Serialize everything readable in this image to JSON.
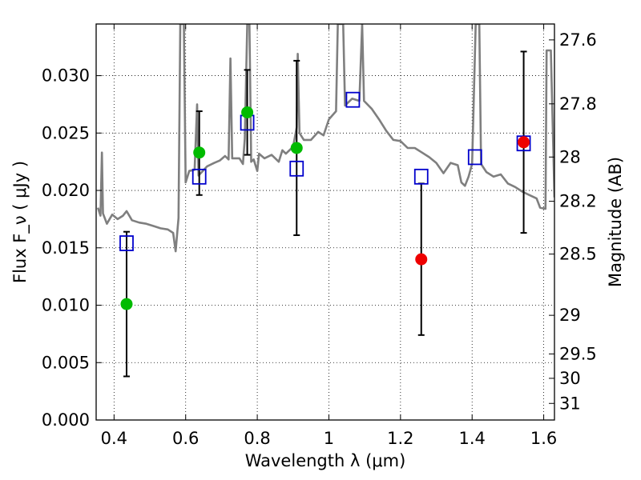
{
  "chart_data": {
    "type": "scatter",
    "title": "",
    "xlabel": "Wavelength  λ (μm)",
    "ylabel": "Flux  F_ν  ( μJy )",
    "y2label": "Magnitude (AB)",
    "xlim": [
      0.35,
      1.63
    ],
    "ylim": [
      0.0,
      0.0345
    ],
    "grid": true,
    "x_ticks": [
      0.4,
      0.6,
      0.8,
      1.0,
      1.2,
      1.4,
      1.6
    ],
    "x_tick_labels": [
      "0.4",
      "0.6",
      "0.8",
      "1",
      "1.2",
      "1.4",
      "1.6"
    ],
    "y_ticks": [
      0.0,
      0.005,
      0.01,
      0.015,
      0.02,
      0.025,
      0.03
    ],
    "y_tick_labels": [
      "0.000",
      "0.005",
      "0.010",
      "0.015",
      "0.020",
      "0.025",
      "0.030"
    ],
    "y2_ticks": [
      {
        "label": "27.6",
        "mag": 27.6
      },
      {
        "label": "27.8",
        "mag": 27.8
      },
      {
        "label": "28",
        "mag": 28.0
      },
      {
        "label": "28.2",
        "mag": 28.2
      },
      {
        "label": "28.5",
        "mag": 28.5
      },
      {
        "label": "29",
        "mag": 29.0
      },
      {
        "label": "29.5",
        "mag": 29.5
      },
      {
        "label": "30",
        "mag": 30.0
      },
      {
        "label": "31",
        "mag": 31.0
      }
    ],
    "model_spectrum": {
      "color": "#7f7f7f",
      "points": [
        [
          0.355,
          0.0185
        ],
        [
          0.362,
          0.0178
        ],
        [
          0.366,
          0.0233
        ],
        [
          0.369,
          0.018
        ],
        [
          0.38,
          0.0171
        ],
        [
          0.395,
          0.0179
        ],
        [
          0.41,
          0.0175
        ],
        [
          0.425,
          0.0178
        ],
        [
          0.435,
          0.0182
        ],
        [
          0.45,
          0.0174
        ],
        [
          0.47,
          0.0172
        ],
        [
          0.49,
          0.0171
        ],
        [
          0.51,
          0.0169
        ],
        [
          0.53,
          0.0167
        ],
        [
          0.55,
          0.0166
        ],
        [
          0.565,
          0.0163
        ],
        [
          0.572,
          0.0147
        ],
        [
          0.58,
          0.0176
        ],
        [
          0.585,
          0.0345
        ],
        [
          0.595,
          0.0345
        ],
        [
          0.6,
          0.0207
        ],
        [
          0.61,
          0.0217
        ],
        [
          0.625,
          0.0218
        ],
        [
          0.632,
          0.0275
        ],
        [
          0.636,
          0.0213
        ],
        [
          0.66,
          0.0221
        ],
        [
          0.68,
          0.0224
        ],
        [
          0.695,
          0.0226
        ],
        [
          0.71,
          0.023
        ],
        [
          0.72,
          0.0227
        ],
        [
          0.725,
          0.0315
        ],
        [
          0.73,
          0.0228
        ],
        [
          0.75,
          0.0228
        ],
        [
          0.76,
          0.0223
        ],
        [
          0.765,
          0.0245
        ],
        [
          0.772,
          0.0345
        ],
        [
          0.778,
          0.0345
        ],
        [
          0.783,
          0.0225
        ],
        [
          0.79,
          0.0227
        ],
        [
          0.8,
          0.0217
        ],
        [
          0.805,
          0.0232
        ],
        [
          0.82,
          0.0228
        ],
        [
          0.84,
          0.0231
        ],
        [
          0.86,
          0.0225
        ],
        [
          0.87,
          0.0235
        ],
        [
          0.88,
          0.0232
        ],
        [
          0.9,
          0.0238
        ],
        [
          0.91,
          0.0255
        ],
        [
          0.913,
          0.0319
        ],
        [
          0.918,
          0.025
        ],
        [
          0.93,
          0.0244
        ],
        [
          0.95,
          0.0244
        ],
        [
          0.97,
          0.0251
        ],
        [
          0.985,
          0.0248
        ],
        [
          1.0,
          0.0262
        ],
        [
          1.02,
          0.0269
        ],
        [
          1.025,
          0.0345
        ],
        [
          1.04,
          0.0345
        ],
        [
          1.045,
          0.0274
        ],
        [
          1.065,
          0.028
        ],
        [
          1.085,
          0.0278
        ],
        [
          1.093,
          0.0345
        ],
        [
          1.098,
          0.0278
        ],
        [
          1.12,
          0.0271
        ],
        [
          1.14,
          0.0262
        ],
        [
          1.16,
          0.0252
        ],
        [
          1.18,
          0.0244
        ],
        [
          1.2,
          0.0243
        ],
        [
          1.22,
          0.0237
        ],
        [
          1.24,
          0.0237
        ],
        [
          1.26,
          0.0233
        ],
        [
          1.28,
          0.0229
        ],
        [
          1.3,
          0.0224
        ],
        [
          1.32,
          0.0215
        ],
        [
          1.34,
          0.0224
        ],
        [
          1.36,
          0.0222
        ],
        [
          1.37,
          0.0207
        ],
        [
          1.38,
          0.0204
        ],
        [
          1.39,
          0.0212
        ],
        [
          1.4,
          0.0223
        ],
        [
          1.41,
          0.0345
        ],
        [
          1.42,
          0.0345
        ],
        [
          1.425,
          0.0223
        ],
        [
          1.44,
          0.0216
        ],
        [
          1.46,
          0.0212
        ],
        [
          1.48,
          0.0214
        ],
        [
          1.5,
          0.0206
        ],
        [
          1.52,
          0.0203
        ],
        [
          1.54,
          0.0199
        ],
        [
          1.56,
          0.0196
        ],
        [
          1.58,
          0.0193
        ],
        [
          1.59,
          0.0185
        ],
        [
          1.605,
          0.0184
        ],
        [
          1.608,
          0.0322
        ],
        [
          1.62,
          0.0322
        ],
        [
          1.63,
          0.0194
        ]
      ]
    },
    "series": [
      {
        "marker": "open-square",
        "color": "#0000cc",
        "points": [
          {
            "x": 0.435,
            "y": 0.0154
          },
          {
            "x": 0.638,
            "y": 0.0212
          },
          {
            "x": 0.772,
            "y": 0.0259
          },
          {
            "x": 0.91,
            "y": 0.0219
          },
          {
            "x": 1.067,
            "y": 0.0279
          },
          {
            "x": 1.258,
            "y": 0.0212
          },
          {
            "x": 1.408,
            "y": 0.0229
          },
          {
            "x": 1.544,
            "y": 0.0241
          }
        ]
      },
      {
        "marker": "filled-circle",
        "color": "#00bb00",
        "points": [
          {
            "x": 0.435,
            "y": 0.0101,
            "yerr_low": 0.0038,
            "yerr_high": 0.0164
          },
          {
            "x": 0.638,
            "y": 0.0233,
            "yerr_low": 0.0196,
            "yerr_high": 0.0269
          },
          {
            "x": 0.772,
            "y": 0.0268,
            "yerr_low": 0.0231,
            "yerr_high": 0.0305
          },
          {
            "x": 0.91,
            "y": 0.0237,
            "yerr_low": 0.0161,
            "yerr_high": 0.0313
          }
        ]
      },
      {
        "marker": "filled-circle",
        "color": "#ee0000",
        "points": [
          {
            "x": 1.258,
            "y": 0.014,
            "yerr_low": 0.0074,
            "yerr_high": 0.0206
          },
          {
            "x": 1.544,
            "y": 0.0242,
            "yerr_low": 0.0163,
            "yerr_high": 0.0321
          }
        ]
      }
    ]
  }
}
